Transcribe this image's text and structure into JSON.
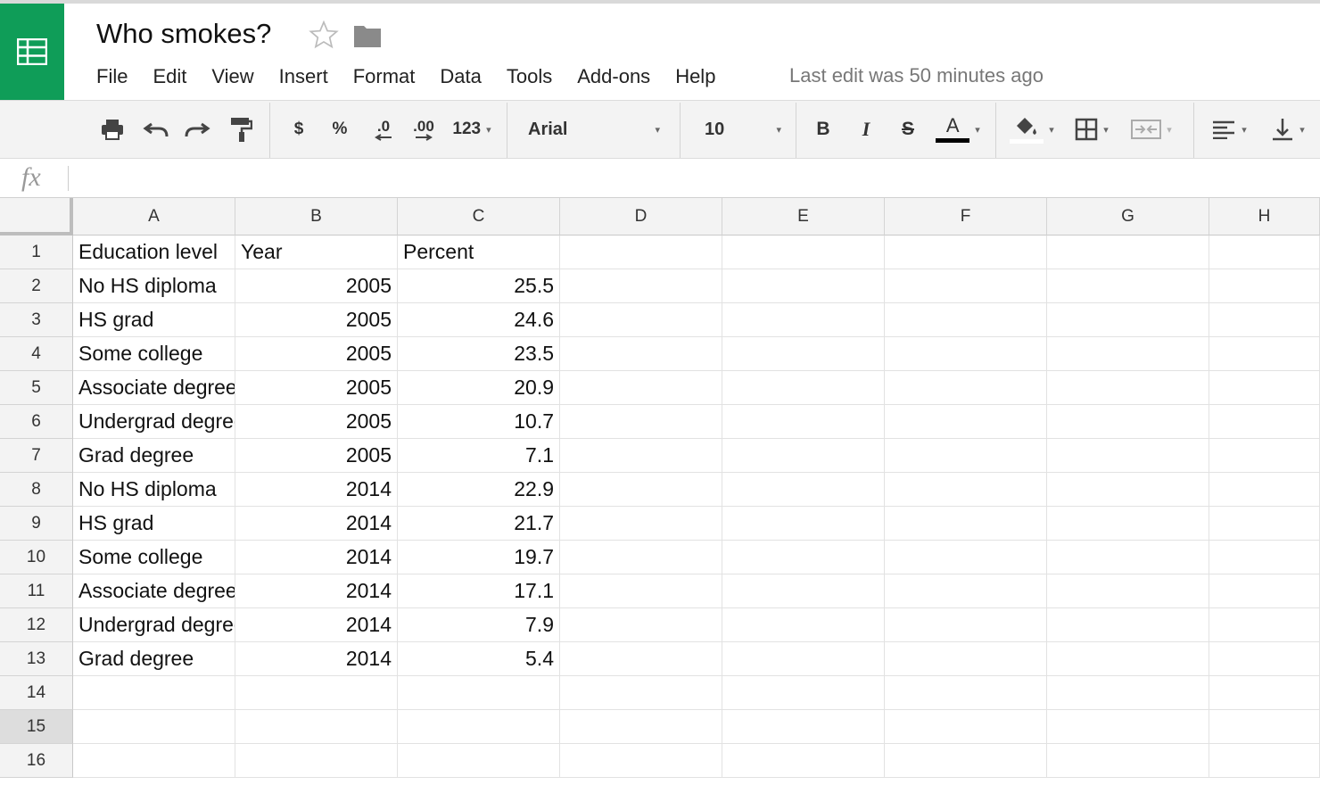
{
  "app": {
    "logo_icon": "sheets-grid-icon",
    "brand_color": "#0f9d58",
    "doc_title": "Who smokes?",
    "last_edit": "Last edit was 50 minutes ago"
  },
  "menu": [
    "File",
    "Edit",
    "View",
    "Insert",
    "Format",
    "Data",
    "Tools",
    "Add-ons",
    "Help"
  ],
  "toolbar": {
    "currency_label": "$",
    "percent_label": "%",
    "decrease_decimal_label": ".0",
    "increase_decimal_label": ".00",
    "more_formats_label": "123",
    "font_name": "Arial",
    "font_size": "10",
    "bold_label": "B",
    "italic_label": "I",
    "strikethrough_label": "S",
    "text_color_label": "A",
    "icons": [
      "print-icon",
      "undo-icon",
      "redo-icon",
      "paint-format-icon",
      "fill-color-icon",
      "borders-icon",
      "merge-cells-icon",
      "align-left-icon",
      "vertical-align-bottom-icon"
    ]
  },
  "formula_bar": {
    "fx_label": "fx",
    "value": ""
  },
  "sheet": {
    "columns": [
      "A",
      "B",
      "C",
      "D",
      "E",
      "F",
      "G",
      "H"
    ],
    "row_numbers": [
      "1",
      "2",
      "3",
      "4",
      "5",
      "6",
      "7",
      "8",
      "9",
      "10",
      "11",
      "12",
      "13",
      "14",
      "15",
      "16"
    ],
    "selected_row": "15",
    "rows": [
      [
        "Education level",
        "Year",
        "Percent"
      ],
      [
        "No HS diploma",
        "2005",
        "25.5"
      ],
      [
        "HS grad",
        "2005",
        "24.6"
      ],
      [
        "Some college",
        "2005",
        "23.5"
      ],
      [
        "Associate degree",
        "2005",
        "20.9"
      ],
      [
        "Undergrad degree",
        "2005",
        "10.7"
      ],
      [
        "Grad degree",
        "2005",
        "7.1"
      ],
      [
        "No HS diploma",
        "2014",
        "22.9"
      ],
      [
        "HS grad",
        "2014",
        "21.7"
      ],
      [
        "Some college",
        "2014",
        "19.7"
      ],
      [
        "Associate degree",
        "2014",
        "17.1"
      ],
      [
        "Undergrad degree",
        "2014",
        "7.9"
      ],
      [
        "Grad degree",
        "2014",
        "5.4"
      ]
    ]
  }
}
